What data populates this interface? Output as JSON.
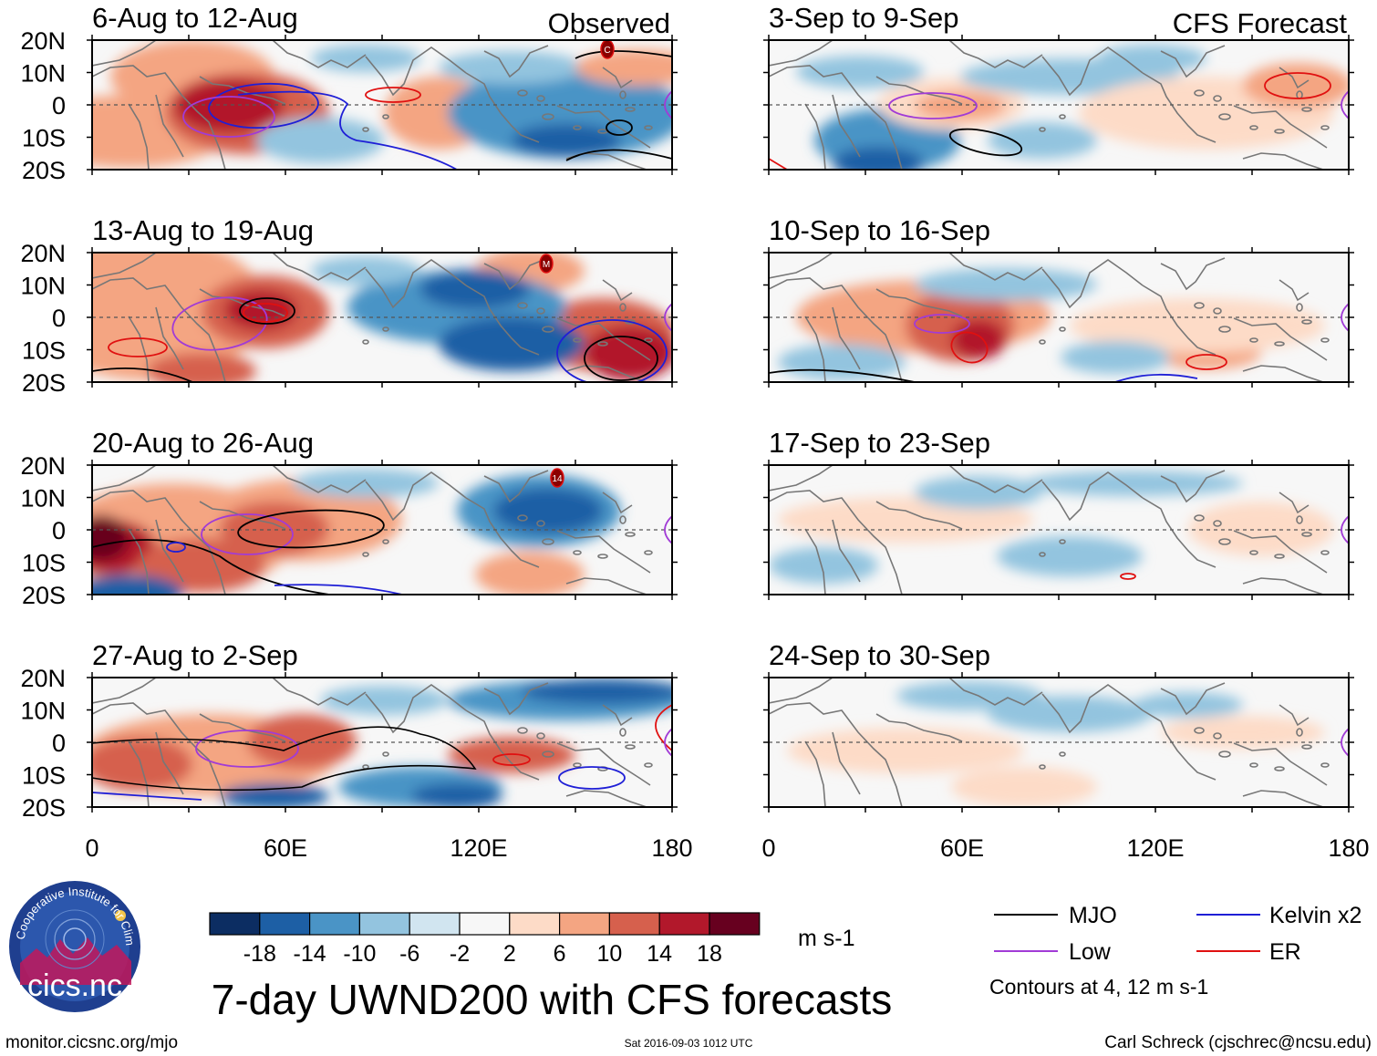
{
  "title": "7-day UWND200 with CFS forecasts",
  "observed_label": "Observed",
  "forecast_label": "CFS Forecast",
  "y_ticks": [
    "20N",
    "10N",
    "0",
    "10S",
    "20S"
  ],
  "x_ticks": [
    "0",
    "60E",
    "120E",
    "180"
  ],
  "panels": {
    "obs": [
      {
        "title": "6-Aug to 12-Aug"
      },
      {
        "title": "13-Aug to 19-Aug"
      },
      {
        "title": "20-Aug to 26-Aug"
      },
      {
        "title": "27-Aug to 2-Sep"
      }
    ],
    "fcst": [
      {
        "title": "3-Sep to 9-Sep"
      },
      {
        "title": "10-Sep to 16-Sep"
      },
      {
        "title": "17-Sep to 23-Sep"
      },
      {
        "title": "24-Sep to 30-Sep"
      }
    ]
  },
  "colorbar": {
    "labels": [
      "-18",
      "-14",
      "-10",
      "-6",
      "-2",
      "2",
      "6",
      "10",
      "14",
      "18"
    ],
    "colors": [
      "#0c2d62",
      "#1d5fa5",
      "#4a94c6",
      "#93c4df",
      "#d1e5f0",
      "#f7f7f7",
      "#fddbc7",
      "#f4a582",
      "#d6604d",
      "#b2182b",
      "#67001f"
    ],
    "units": "m s-1"
  },
  "legend": {
    "items": [
      {
        "label": "MJO",
        "color": "#000000"
      },
      {
        "label": "Kelvin x2",
        "color": "#1f1fd6"
      },
      {
        "label": "Low",
        "color": "#a13bd6"
      },
      {
        "label": "ER",
        "color": "#e01010"
      }
    ],
    "note": "Contours at 4, 12 m s-1"
  },
  "logo_text": "cics.nc",
  "logo_ring_text": "Cooperative Institute for Climate and Satellites",
  "footer": {
    "url": "monitor.cicsnc.org/mjo",
    "timestamp": "Sat 2016-09-03 1012 UTC",
    "author": "Carl Schreck (cjschrec@ncsu.edu)"
  },
  "storm_labels": [
    "C",
    "M",
    "14"
  ]
}
